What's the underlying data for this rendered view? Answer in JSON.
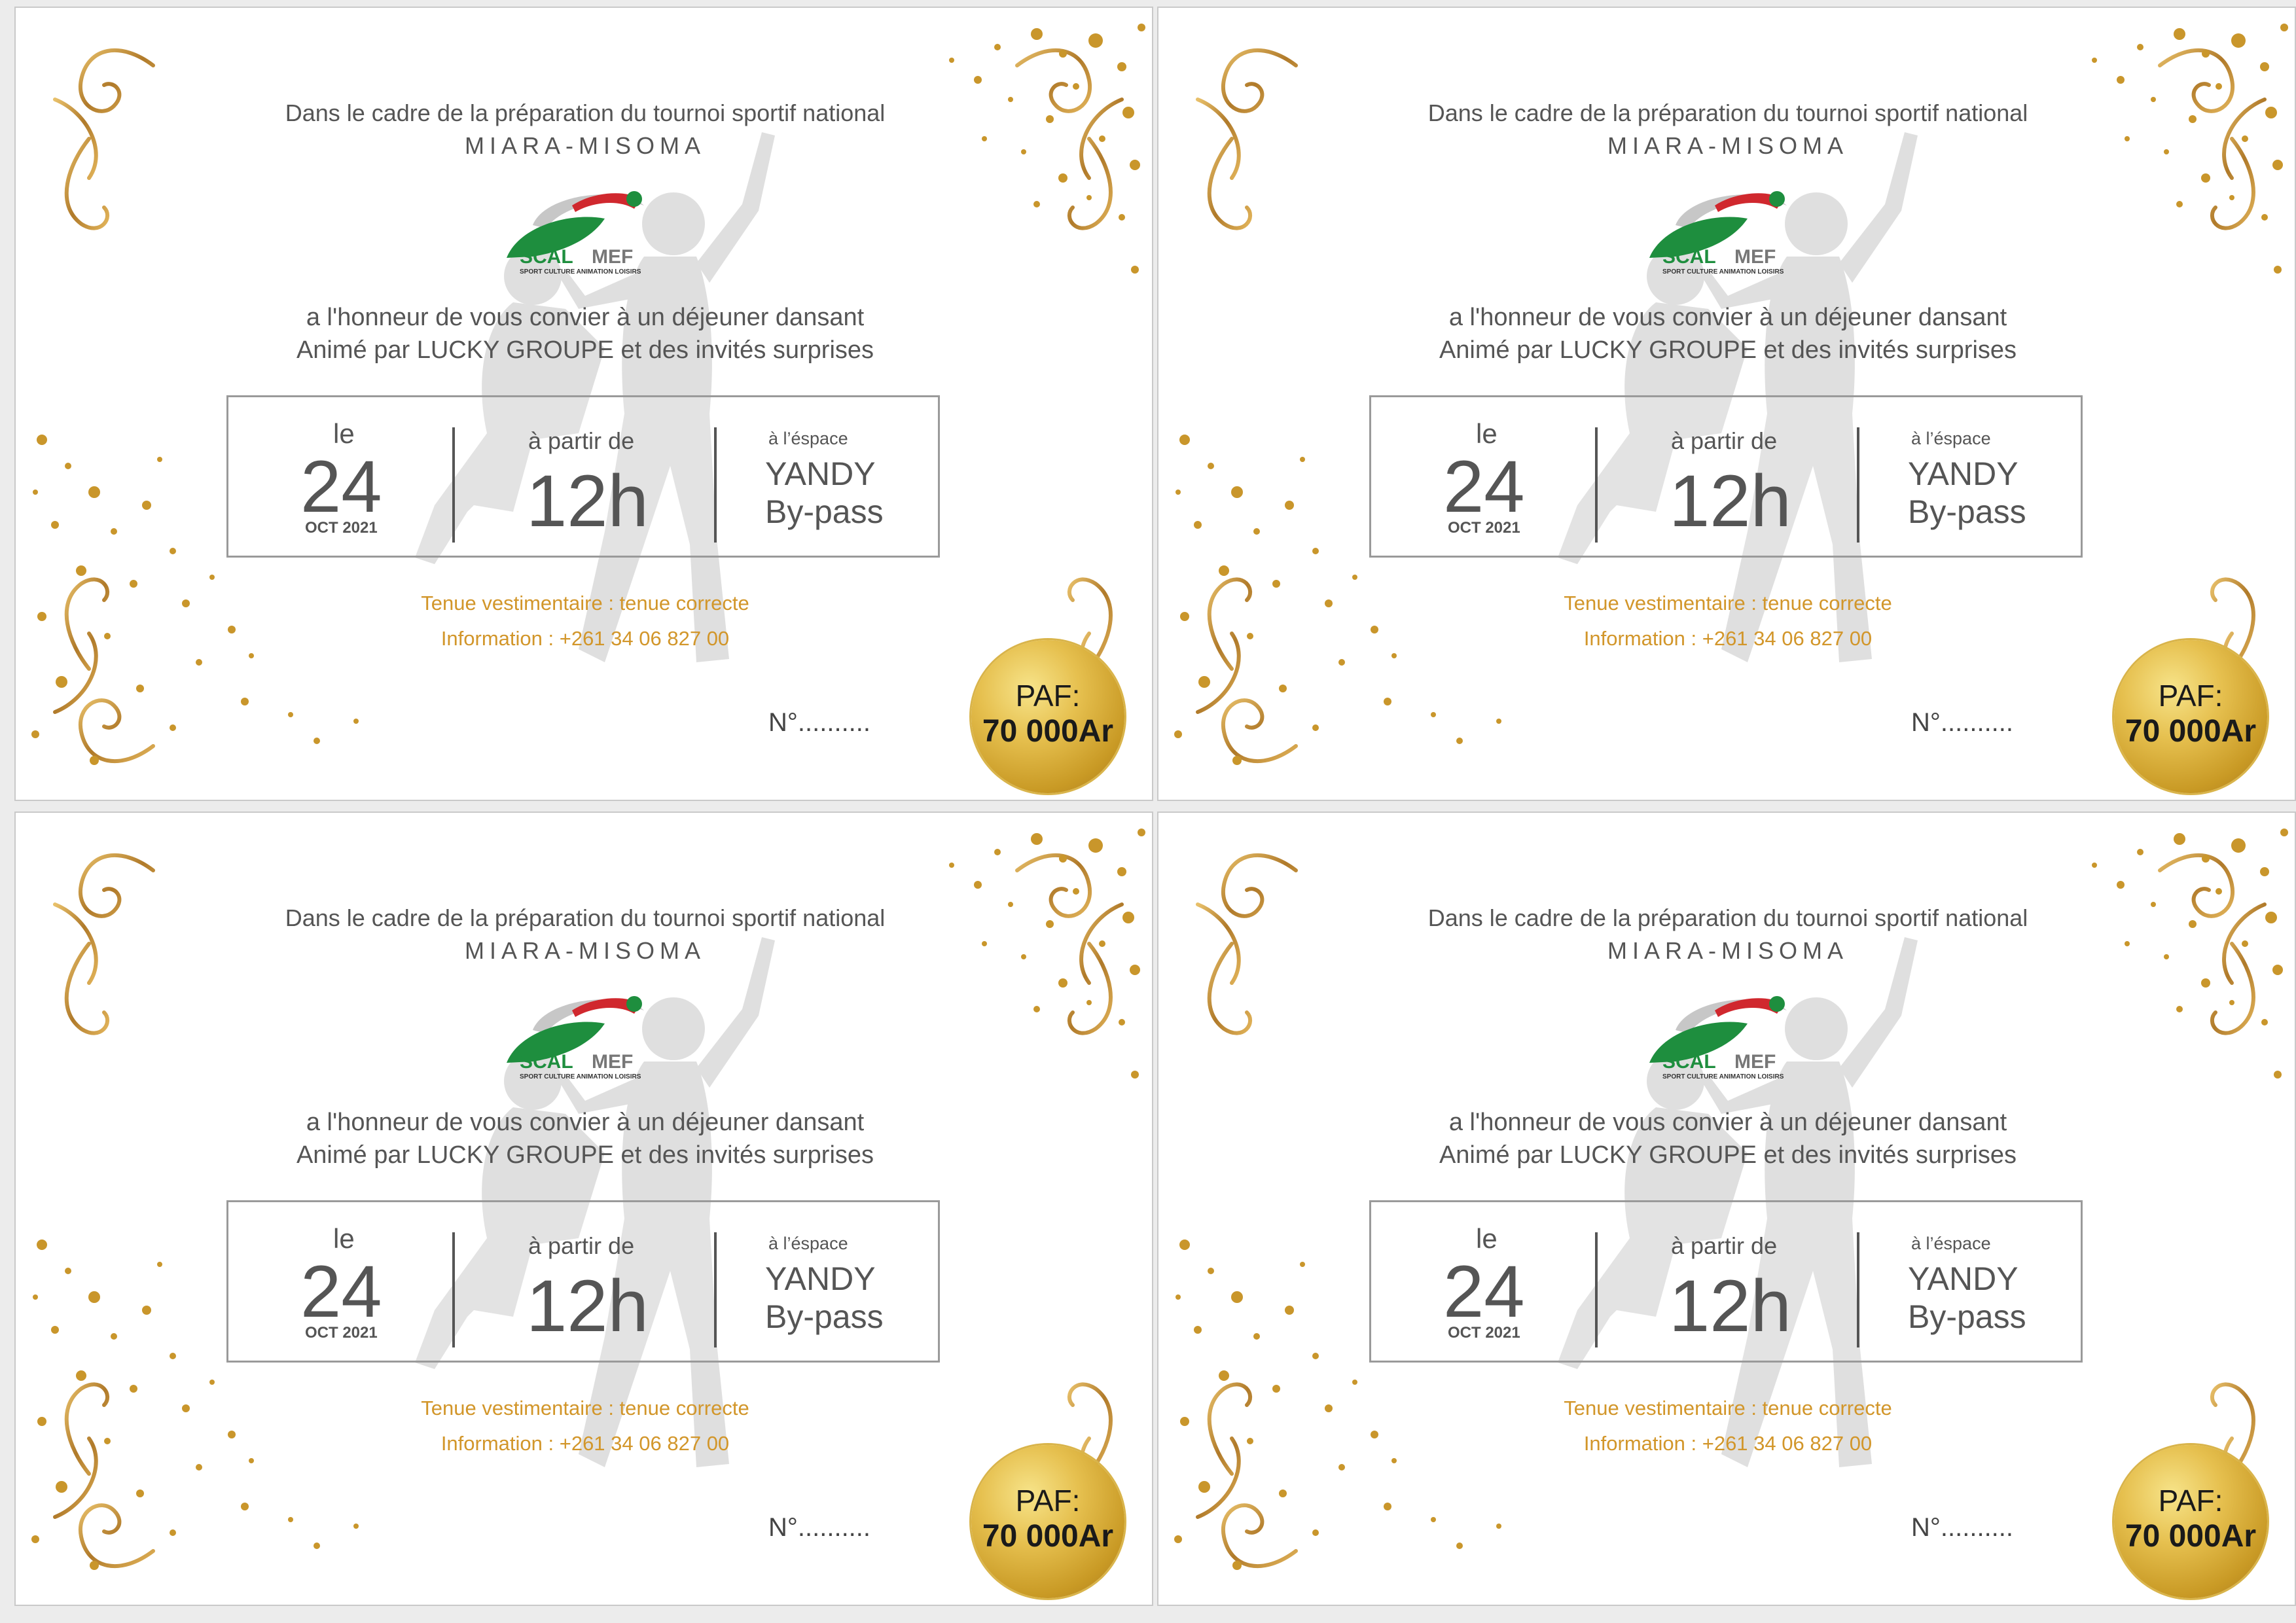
{
  "colors": {
    "gold": "#c9962b",
    "text": "#555555",
    "accent_text": "#d2962a",
    "logo_green": "#1e8e3e",
    "logo_red": "#d0282e"
  },
  "cards": [
    {
      "intro": "Dans le cadre de la préparation du tournoi sportif national",
      "event": "MIARA-MISOMA",
      "logo": {
        "left": "SCAL",
        "right": "MEF",
        "tagline": "SPORT CULTURE ANIMATION LOISIRS"
      },
      "invite_line1": "a l'honneur de vous convier à un déjeuner dansant",
      "invite_line2": "Animé par LUCKY GROUPE et des invités surprises",
      "date": {
        "prefix": "le",
        "day": "24",
        "month_year": "OCT 2021"
      },
      "time": {
        "prefix": "à partir de",
        "hour": "12h"
      },
      "venue": {
        "prefix": "à l’éspace",
        "line1": "YANDY",
        "line2": "By-pass"
      },
      "dress_code": "Tenue vestimentaire : tenue correcte",
      "information": "Information : +261 34 06 827 00",
      "number": "N°..........",
      "paf_label": "PAF:",
      "paf_amount": "70 000Ar"
    },
    {
      "intro": "Dans le cadre de la préparation du tournoi sportif national",
      "event": "MIARA-MISOMA",
      "logo": {
        "left": "SCAL",
        "right": "MEF",
        "tagline": "SPORT CULTURE ANIMATION LOISIRS"
      },
      "invite_line1": "a l'honneur de vous convier à un déjeuner dansant",
      "invite_line2": "Animé par LUCKY GROUPE et des invités surprises",
      "date": {
        "prefix": "le",
        "day": "24",
        "month_year": "OCT 2021"
      },
      "time": {
        "prefix": "à partir de",
        "hour": "12h"
      },
      "venue": {
        "prefix": "à l’éspace",
        "line1": "YANDY",
        "line2": "By-pass"
      },
      "dress_code": "Tenue vestimentaire : tenue correcte",
      "information": "Information : +261 34 06 827 00",
      "number": "N°..........",
      "paf_label": "PAF:",
      "paf_amount": "70 000Ar"
    },
    {
      "intro": "Dans le cadre de la préparation du tournoi sportif national",
      "event": "MIARA-MISOMA",
      "logo": {
        "left": "SCAL",
        "right": "MEF",
        "tagline": "SPORT CULTURE ANIMATION LOISIRS"
      },
      "invite_line1": "a l'honneur de vous convier à un déjeuner dansant",
      "invite_line2": "Animé par LUCKY GROUPE et des invités surprises",
      "date": {
        "prefix": "le",
        "day": "24",
        "month_year": "OCT 2021"
      },
      "time": {
        "prefix": "à partir de",
        "hour": "12h"
      },
      "venue": {
        "prefix": "à l’éspace",
        "line1": "YANDY",
        "line2": "By-pass"
      },
      "dress_code": "Tenue vestimentaire : tenue correcte",
      "information": "Information : +261 34 06 827 00",
      "number": "N°..........",
      "paf_label": "PAF:",
      "paf_amount": "70 000Ar"
    },
    {
      "intro": "Dans le cadre de la préparation du tournoi sportif national",
      "event": "MIARA-MISOMA",
      "logo": {
        "left": "SCAL",
        "right": "MEF",
        "tagline": "SPORT CULTURE ANIMATION LOISIRS"
      },
      "invite_line1": "a l'honneur de vous convier à un déjeuner dansant",
      "invite_line2": "Animé par LUCKY GROUPE et des invités surprises",
      "date": {
        "prefix": "le",
        "day": "24",
        "month_year": "OCT 2021"
      },
      "time": {
        "prefix": "à partir de",
        "hour": "12h"
      },
      "venue": {
        "prefix": "à l’éspace",
        "line1": "YANDY",
        "line2": "By-pass"
      },
      "dress_code": "Tenue vestimentaire : tenue correcte",
      "information": "Information : +261 34 06 827 00",
      "number": "N°..........",
      "paf_label": "PAF:",
      "paf_amount": "70 000Ar"
    }
  ]
}
